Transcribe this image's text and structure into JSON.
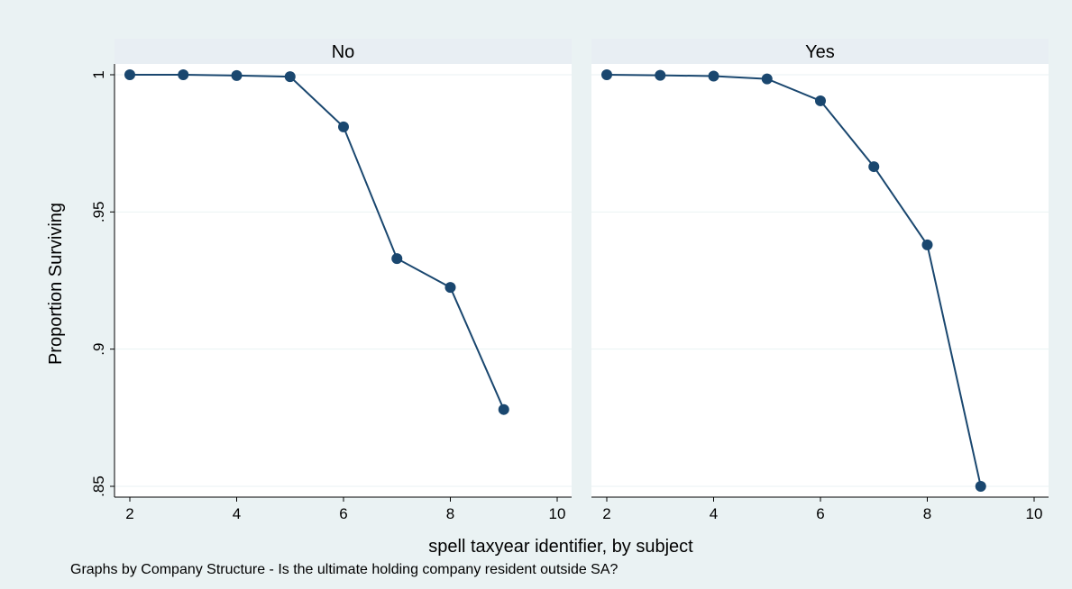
{
  "chart_data": {
    "type": "line",
    "xlabel": "spell taxyear identifier, by subject",
    "ylabel": "Proportion Surviving",
    "note": "Graphs by Company Structure - Is the ultimate holding company resident outside SA?",
    "xlim": [
      2,
      10
    ],
    "ylim": [
      0.85,
      1
    ],
    "xticks": [
      2,
      4,
      6,
      8,
      10
    ],
    "yticks": [
      {
        "value": 0.85,
        "label": ".85"
      },
      {
        "value": 0.9,
        "label": ".9"
      },
      {
        "value": 0.95,
        "label": ".95"
      },
      {
        "value": 1,
        "label": "1"
      }
    ],
    "grid": true,
    "colors": {
      "series": "#1a476f",
      "header": "#e8eef3",
      "outer": "#eaf2f3"
    },
    "panels": [
      {
        "label": "No",
        "x": [
          2,
          3,
          4,
          5,
          6,
          7,
          8,
          9
        ],
        "y": [
          1.0,
          1.0,
          0.9997,
          0.9993,
          0.981,
          0.933,
          0.9225,
          0.878
        ]
      },
      {
        "label": "Yes",
        "x": [
          2,
          3,
          4,
          5,
          6,
          7,
          8,
          9
        ],
        "y": [
          1.0,
          0.9998,
          0.9995,
          0.9985,
          0.9905,
          0.9665,
          0.938,
          0.85
        ]
      }
    ]
  }
}
